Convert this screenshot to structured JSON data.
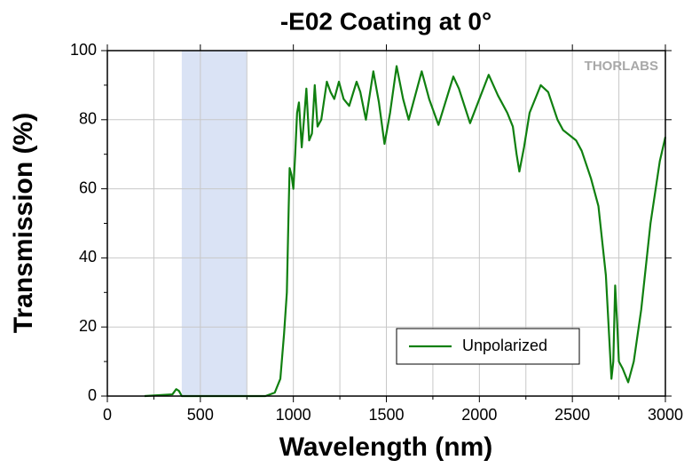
{
  "chart_data": {
    "type": "line",
    "title": "-E02 Coating at 0°",
    "x_label": "Wavelength (nm)",
    "y_label": "Transmission (%)",
    "watermark": "THORLABS",
    "shaded_region": [
      400,
      750
    ],
    "xlim": [
      0,
      3000
    ],
    "ylim": [
      0,
      100
    ],
    "xticks": [
      0,
      500,
      1000,
      1500,
      2000,
      2500,
      3000
    ],
    "yticks": [
      0,
      20,
      40,
      60,
      80,
      100
    ],
    "xminor": [
      250,
      750,
      1250,
      1750,
      2250,
      2750
    ],
    "yminor": [
      10,
      30,
      50,
      70,
      90
    ],
    "grid": true,
    "legend": "lower right",
    "x": [
      200,
      350,
      370,
      385,
      400,
      500,
      750,
      850,
      900,
      930,
      950,
      965,
      975,
      980,
      990,
      1000,
      1010,
      1020,
      1030,
      1045,
      1060,
      1070,
      1085,
      1100,
      1115,
      1130,
      1150,
      1180,
      1200,
      1220,
      1245,
      1270,
      1300,
      1340,
      1360,
      1390,
      1430,
      1460,
      1490,
      1520,
      1555,
      1590,
      1620,
      1690,
      1730,
      1780,
      1860,
      1890,
      1950,
      2050,
      2100,
      2150,
      2180,
      2200,
      2215,
      2240,
      2270,
      2330,
      2370,
      2420,
      2450,
      2520,
      2550,
      2600,
      2640,
      2680,
      2700,
      2710,
      2720,
      2730,
      2740,
      2750,
      2770,
      2800,
      2830,
      2870,
      2920,
      2970,
      3000
    ],
    "series": [
      {
        "name": "Unpolarized",
        "color": "#108010",
        "values": [
          0,
          0.5,
          2,
          1.5,
          0,
          0,
          0,
          0,
          1,
          5,
          18,
          30,
          55,
          66,
          64,
          60,
          70,
          82,
          85,
          72,
          82,
          89,
          74,
          76,
          90,
          78,
          80,
          91,
          88,
          86,
          91,
          86,
          84,
          91,
          88,
          80,
          94,
          85,
          73,
          82,
          95.5,
          86,
          80,
          94,
          86,
          78.5,
          92.5,
          89,
          79,
          93,
          87,
          82,
          78,
          70,
          65,
          72,
          82,
          90,
          88,
          80,
          77,
          74,
          71,
          63,
          55,
          35,
          15,
          5,
          10,
          32,
          22,
          10,
          8,
          4,
          10,
          25,
          50,
          68,
          75
        ]
      }
    ]
  }
}
